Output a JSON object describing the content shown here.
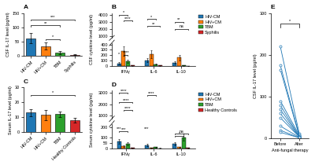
{
  "chart_data": [
    {
      "type": "bar",
      "title": "A",
      "ylabel": "CSF IL-17 level (pg/ml)",
      "categories": [
        "HIV-CM",
        "HIV+CM",
        "TBM",
        "Syphilis"
      ],
      "values": [
        62,
        35,
        12,
        5
      ],
      "errors": [
        18,
        12,
        5,
        2
      ],
      "ylim": [
        0,
        150
      ],
      "yticks": [
        0,
        50,
        100,
        150
      ],
      "annotations": [
        {
          "x1": 0,
          "x2": 3,
          "y": 128,
          "label": "***"
        },
        {
          "x1": 0,
          "x2": 2,
          "y": 108,
          "label": "**"
        },
        {
          "x1": 1,
          "x2": 2,
          "y": 60,
          "label": "*"
        }
      ]
    },
    {
      "type": "bar",
      "title": "B",
      "ylabel": "CSF cytokine level (pg/ml)",
      "categories": [
        "IFNγ",
        "IL-6",
        "IL-10"
      ],
      "series": [
        {
          "name": "HIV-CM",
          "values": [
            50,
            105,
            65
          ],
          "errors": [
            18,
            35,
            22
          ]
        },
        {
          "name": "HIV+CM",
          "values": [
            280,
            220,
            155
          ],
          "errors": [
            90,
            75,
            55
          ]
        },
        {
          "name": "TBM",
          "values": [
            90,
            35,
            10
          ],
          "errors": [
            30,
            12,
            4
          ]
        },
        {
          "name": "Syphilis",
          "values": [
            8,
            8,
            3
          ],
          "errors": [
            3,
            3,
            1
          ]
        }
      ],
      "ylim": [
        0,
        430
      ],
      "yticks": [
        0,
        100,
        200,
        300,
        400
      ],
      "upper_ylim": [
        700,
        4200
      ],
      "upper_yticks": [
        1000,
        2000,
        3000,
        4000
      ],
      "legend": "right",
      "annotations": [
        {
          "category": 0,
          "series1": 0,
          "series2": 2,
          "y": 4000,
          "label": "*"
        },
        {
          "category": 0,
          "series1": 1,
          "series2": 3,
          "y": 3200,
          "label": "****"
        },
        {
          "category": 1,
          "series1": 0,
          "series2": 2,
          "y": 3400,
          "label": "*"
        },
        {
          "category": 1,
          "series1": 0,
          "series2": 3,
          "y": 2400,
          "label": "**"
        },
        {
          "category": 2,
          "series1": 0,
          "series2": 2,
          "y": 3000,
          "label": "**"
        },
        {
          "category": 2,
          "series1": 0,
          "series2": 3,
          "y": 2000,
          "label": "ns"
        },
        {
          "category": 0,
          "series1": 1,
          "series2": 2,
          "y": 210,
          "label": "****"
        },
        {
          "category": 0,
          "series": 0,
          "y": 195,
          "label": "*"
        }
      ]
    },
    {
      "type": "bar",
      "title": "C",
      "ylabel": "Serum IL-17 level (pg/ml)",
      "categories": [
        "HIV-CM",
        "HIV+CM",
        "TBM",
        "Healthy Controls"
      ],
      "values": [
        13,
        11.5,
        12,
        8
      ],
      "errors": [
        2.5,
        3.5,
        2,
        1.5
      ],
      "ylim": [
        0,
        30
      ],
      "yticks": [
        0,
        10,
        20,
        30
      ],
      "annotations": [
        {
          "x1": 0,
          "x2": 3,
          "y": 25,
          "label": "*"
        }
      ]
    },
    {
      "type": "bar",
      "title": "D",
      "ylabel": "Serum cytokine level (pg/ml)",
      "categories": [
        "IFNγ",
        "IL-6",
        "IL-10"
      ],
      "series": [
        {
          "name": "HIV-CM",
          "values": [
            65,
            32,
            42
          ],
          "errors": [
            22,
            12,
            14
          ]
        },
        {
          "name": "HIV+CM",
          "values": [
            20,
            5,
            12
          ],
          "errors": [
            8,
            2,
            4
          ]
        },
        {
          "name": "TBM",
          "values": [
            45,
            12,
            105
          ],
          "errors": [
            15,
            4,
            32
          ]
        },
        {
          "name": "Healthy Controls",
          "values": [
            5,
            3,
            4
          ],
          "errors": [
            2,
            1,
            1
          ]
        }
      ],
      "ylim": [
        0,
        230
      ],
      "yticks": [
        0,
        50,
        100,
        200
      ],
      "upper_ylim": [
        700,
        3200
      ],
      "upper_yticks": [
        1000,
        2000,
        3000
      ],
      "legend": "right",
      "annotations": [
        {
          "category": 0,
          "series1": 0,
          "series2": 2,
          "y": 3000,
          "label": "****"
        },
        {
          "category": 0,
          "series1": 0,
          "series2": 3,
          "y": 2200,
          "label": "****"
        },
        {
          "category": 0,
          "series1": 1,
          "series2": 3,
          "y": 1500,
          "label": "****"
        },
        {
          "category": 1,
          "series1": 0,
          "series2": 2,
          "y": 2800,
          "label": "****"
        },
        {
          "category": 0,
          "series": 0,
          "y": 170,
          "label": "***"
        },
        {
          "category": 0,
          "series1": 0,
          "series2": 2,
          "y": 160,
          "label": "***"
        },
        {
          "category": 1,
          "series": 0,
          "y": 170,
          "label": "***"
        },
        {
          "category": 2,
          "series1": 0,
          "series2": 3,
          "y": 140,
          "label": "ns"
        },
        {
          "category": 2,
          "series1": 0,
          "series2": 2,
          "y": 120,
          "label": "*"
        }
      ]
    },
    {
      "type": "line",
      "title": "E",
      "ylabel": "CSF IL-17 level (pg/ml)",
      "xlabel": "Anti-fungal therapy",
      "categories": [
        "Before",
        "After"
      ],
      "marker": "o",
      "series": [
        {
          "values": [
            220,
            12
          ]
        },
        {
          "values": [
            175,
            8
          ]
        },
        {
          "values": [
            165,
            6
          ]
        },
        {
          "values": [
            90,
            8
          ]
        },
        {
          "values": [
            80,
            5
          ]
        },
        {
          "values": [
            70,
            5
          ]
        },
        {
          "values": [
            60,
            4
          ]
        },
        {
          "values": [
            50,
            4
          ]
        },
        {
          "values": [
            30,
            3
          ]
        },
        {
          "values": [
            20,
            2
          ]
        },
        {
          "values": [
            15,
            2
          ]
        }
      ],
      "ylim": [
        0,
        300
      ],
      "yticks": [
        0,
        100,
        200,
        300
      ],
      "annotations": [
        {
          "x1": 0,
          "x2": 1,
          "y": 275,
          "label": "*"
        }
      ]
    }
  ]
}
